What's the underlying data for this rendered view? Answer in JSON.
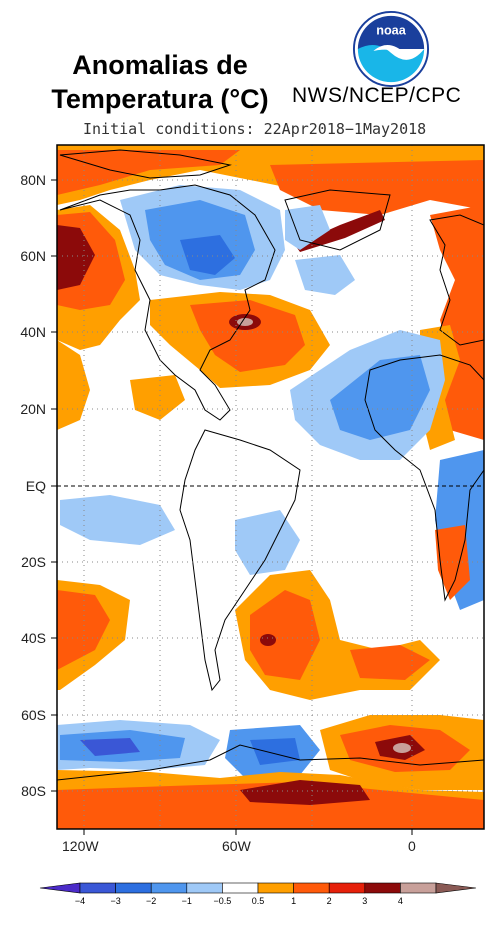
{
  "header": {
    "title_line1": "Anomalias de",
    "title_line2": "Temperatura (°C)",
    "agency": "NWS/NCEP/CPC",
    "initial_conditions": "Initial conditions: 22Apr2018−1May2018",
    "logo_text": "noaa"
  },
  "map": {
    "lat_labels": [
      "80N",
      "60N",
      "40N",
      "20N",
      "EQ",
      "20S",
      "40S",
      "60S",
      "80S"
    ],
    "lon_labels": [
      "120W",
      "60W",
      "0"
    ],
    "equator_line": "dashed"
  },
  "colorbar": {
    "labels": [
      "−4",
      "−3",
      "−2",
      "−1",
      "−0.5",
      "0.5",
      "1",
      "2",
      "3",
      "4"
    ],
    "colors": [
      "#4b2bc8",
      "#3a57d6",
      "#2d6fe0",
      "#4f96ee",
      "#9fc9f7",
      "#ffffff",
      "#ff9f00",
      "#ff5a0a",
      "#e6200a",
      "#8c0a0a",
      "#c8a09a",
      "#8a5a55"
    ]
  }
}
